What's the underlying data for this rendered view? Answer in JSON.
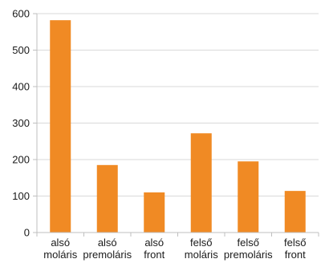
{
  "chart_data": {
    "type": "bar",
    "title": "",
    "xlabel": "",
    "ylabel": "",
    "categories": [
      [
        "alsó",
        "moláris"
      ],
      [
        "alsó",
        "premoláris"
      ],
      [
        "alsó",
        "front"
      ],
      [
        "felső",
        "moláris"
      ],
      [
        "felső",
        "premoláris"
      ],
      [
        "felső",
        "front"
      ]
    ],
    "values": [
      582,
      185,
      110,
      272,
      195,
      114
    ],
    "ylim": [
      0,
      600
    ],
    "yticks": [
      "0",
      "100",
      "200",
      "300",
      "400",
      "500",
      "600"
    ],
    "grid": true,
    "legend": "none",
    "bar_color": "#f08a24"
  }
}
